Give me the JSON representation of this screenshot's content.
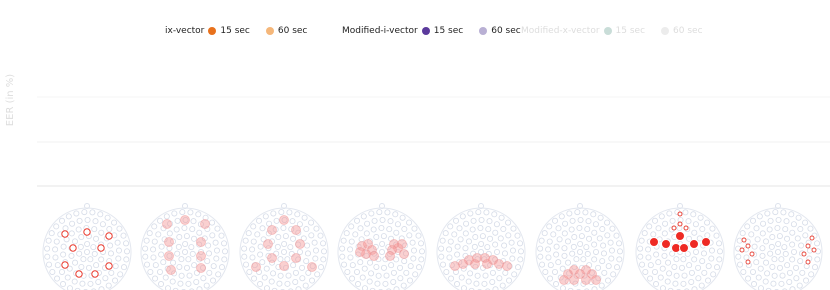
{
  "legend": [
    {
      "name": "ix-vector",
      "items": [
        {
          "label": "15 sec",
          "color": "#e8711c"
        },
        {
          "label": "60 sec",
          "color": "#f5b77a"
        }
      ]
    },
    {
      "name": "Modified-i-vector",
      "items": [
        {
          "label": "15 sec",
          "color": "#5b3a9c"
        },
        {
          "label": "60 sec",
          "color": "#b9b0d4"
        }
      ]
    },
    {
      "name": "Modified-x-vector",
      "faded": true,
      "items": [
        {
          "label": "15 sec",
          "color": "#c9ddd8"
        },
        {
          "label": "60 sec",
          "color": "#ececec"
        }
      ]
    }
  ],
  "y_label": "EER (in %)"
}
